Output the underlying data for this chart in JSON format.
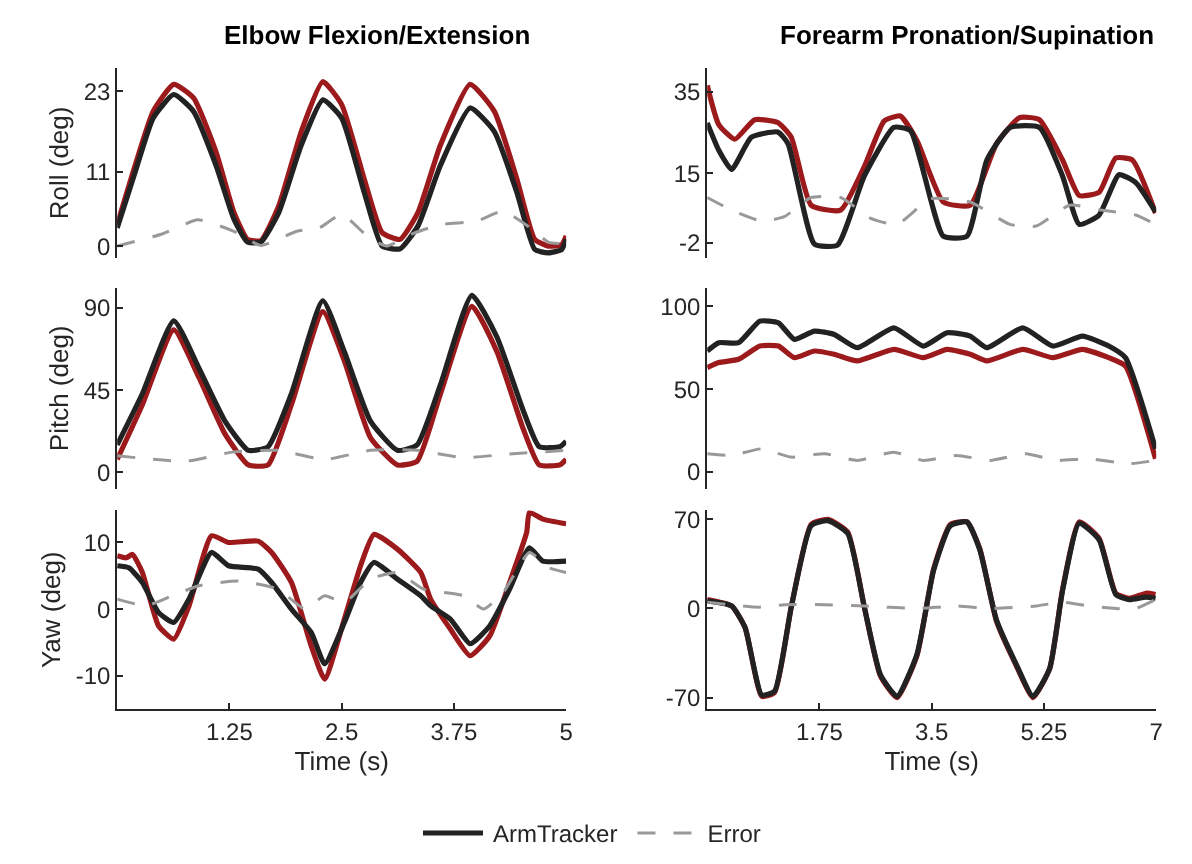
{
  "chart_data": [
    {
      "type": "line",
      "title": "Elbow Flexion/Extension",
      "ylabel": "Roll (deg)",
      "xlim": [
        0,
        5
      ],
      "ylim": [
        -1.8,
        26.5
      ],
      "yticks": [
        0,
        11,
        23
      ],
      "tick_labels": "y",
      "legend": "bottom",
      "series": [
        {
          "color": "#9c1a1c",
          "x": [
            0,
            0.2,
            0.4,
            0.63,
            0.85,
            1.1,
            1.3,
            1.45,
            1.6,
            1.8,
            2.05,
            2.29,
            2.5,
            2.75,
            2.95,
            3.15,
            3.35,
            3.6,
            3.93,
            4.2,
            4.45,
            4.65,
            4.8,
            4.95,
            5
          ],
          "values": [
            3.2,
            12,
            20,
            24,
            22,
            14,
            5,
            1,
            0.8,
            6,
            17,
            24.4,
            21,
            10,
            2,
            1,
            5,
            15,
            24,
            20,
            10,
            1,
            0,
            0.2,
            1.5
          ]
        },
        {
          "name": "ArmTracker",
          "color": "#222222",
          "x": [
            0,
            0.2,
            0.4,
            0.63,
            0.85,
            1.1,
            1.3,
            1.45,
            1.6,
            1.8,
            2.05,
            2.29,
            2.5,
            2.75,
            2.95,
            3.15,
            3.35,
            3.6,
            3.93,
            4.2,
            4.45,
            4.65,
            4.8,
            4.95,
            5
          ],
          "values": [
            2.7,
            11,
            19,
            22.5,
            20,
            12,
            4,
            0.6,
            0.6,
            5,
            15,
            21.7,
            19,
            8,
            0,
            -0.4,
            3,
            12,
            20.5,
            17,
            8,
            -0.5,
            -1,
            -0.5,
            1
          ]
        },
        {
          "name": "Error",
          "color": "#999999",
          "line_style": "dashed",
          "x": [
            0,
            0.5,
            0.9,
            1.3,
            1.6,
            2.0,
            2.25,
            2.5,
            2.8,
            3.0,
            3.3,
            3.6,
            4.0,
            4.3,
            4.6,
            4.8,
            5
          ],
          "values": [
            0,
            1.8,
            3.9,
            2.2,
            0.1,
            2.2,
            2.7,
            4.7,
            1.3,
            0,
            1.9,
            3.2,
            3.7,
            5.2,
            2.7,
            0.6,
            0.3
          ]
        }
      ]
    },
    {
      "type": "line",
      "title": "Forearm Pronation/Supination",
      "xlim": [
        0,
        7
      ],
      "ylim": [
        -5.8,
        41
      ],
      "yticks": [
        -2,
        15,
        35
      ],
      "tick_labels": "y",
      "series": [
        {
          "color": "#9c1a1c",
          "x": [
            0,
            0.18,
            0.43,
            0.74,
            1.1,
            1.31,
            1.62,
            2.08,
            2.45,
            2.76,
            3.01,
            3.27,
            3.68,
            4.1,
            4.51,
            4.87,
            5.18,
            5.54,
            5.8,
            6.11,
            6.37,
            6.63,
            6.99
          ],
          "values": [
            36.6,
            27,
            23.4,
            28.2,
            27.5,
            23.9,
            7.2,
            6,
            16.7,
            27.9,
            29.1,
            23.1,
            8,
            7.2,
            22.3,
            28.7,
            28.2,
            18.3,
            9.6,
            10.4,
            18.8,
            18.3,
            5.3
          ]
        },
        {
          "color": "#222222",
          "x": [
            0,
            0.18,
            0.38,
            0.69,
            1.1,
            1.26,
            1.67,
            2.03,
            2.45,
            2.91,
            3.17,
            3.68,
            4.05,
            4.36,
            4.72,
            5.18,
            5.54,
            5.8,
            6.11,
            6.42,
            6.68,
            6.99
          ],
          "values": [
            27.4,
            20.7,
            16,
            23.9,
            25.2,
            22.3,
            -2.3,
            -2.6,
            14.4,
            26.3,
            25.5,
            -0.4,
            -0.4,
            18.3,
            26.3,
            26.3,
            14.4,
            2.5,
            4.8,
            14.7,
            12.8,
            5.6
          ]
        },
        {
          "color": "#999999",
          "line_style": "dashed",
          "x": [
            0,
            0.38,
            0.85,
            1.2,
            1.62,
            2.08,
            2.55,
            2.96,
            3.48,
            4.1,
            4.72,
            5.13,
            5.65,
            6.16,
            6.68,
            6.99
          ],
          "values": [
            9.1,
            6,
            3.3,
            4.4,
            9.1,
            9.1,
            4,
            2.5,
            8.8,
            8,
            2.5,
            2.1,
            7.2,
            6,
            4.8,
            2.5
          ]
        }
      ]
    },
    {
      "type": "line",
      "ylabel": "Pitch (deg)",
      "xlim": [
        0,
        5
      ],
      "ylim": [
        -9,
        101
      ],
      "yticks": [
        0,
        45,
        90
      ],
      "tick_labels": "y",
      "series": [
        {
          "color": "#9c1a1c",
          "x": [
            0,
            0.28,
            0.63,
            0.91,
            1.2,
            1.46,
            1.68,
            1.94,
            2.29,
            2.53,
            2.82,
            3.12,
            3.34,
            3.6,
            3.95,
            4.23,
            4.52,
            4.7,
            4.93,
            5
          ],
          "values": [
            7,
            37,
            78,
            52,
            21,
            4,
            4,
            37,
            88,
            61,
            19,
            4,
            6,
            43,
            91,
            66,
            24,
            4,
            4,
            7
          ]
        },
        {
          "color": "#222222",
          "x": [
            0,
            0.28,
            0.63,
            0.91,
            1.2,
            1.46,
            1.68,
            1.94,
            2.29,
            2.53,
            2.82,
            3.12,
            3.34,
            3.6,
            3.95,
            4.23,
            4.52,
            4.7,
            4.93,
            5
          ],
          "values": [
            15,
            43,
            83,
            57,
            28,
            12,
            14,
            43,
            94,
            66,
            28,
            12,
            15,
            48,
            97,
            74,
            34,
            14,
            14,
            17
          ]
        },
        {
          "color": "#999999",
          "line_style": "dashed",
          "x": [
            0,
            0.76,
            1.28,
            1.79,
            2.31,
            2.82,
            3.34,
            3.86,
            4.37,
            5
          ],
          "values": [
            9,
            6,
            11,
            12,
            7,
            12,
            12,
            8,
            10,
            12
          ]
        }
      ]
    },
    {
      "type": "line",
      "xlim": [
        0,
        7
      ],
      "ylim": [
        -10,
        111
      ],
      "yticks": [
        0,
        50,
        100
      ],
      "tick_labels": "y",
      "series": [
        {
          "color": "#9c1a1c",
          "x": [
            0,
            0.18,
            0.49,
            0.82,
            1.11,
            1.36,
            1.67,
            1.98,
            2.34,
            2.91,
            3.37,
            3.74,
            4.1,
            4.36,
            4.92,
            5.39,
            5.85,
            6.26,
            6.52,
            6.99
          ],
          "values": [
            63,
            66,
            68,
            76,
            76,
            69,
            73,
            71,
            67,
            74,
            69,
            74,
            71,
            67,
            74,
            69,
            74,
            69,
            64,
            8
          ]
        },
        {
          "color": "#222222",
          "x": [
            0,
            0.18,
            0.49,
            0.82,
            1.11,
            1.36,
            1.67,
            1.98,
            2.34,
            2.91,
            3.37,
            3.74,
            4.1,
            4.36,
            4.92,
            5.39,
            5.85,
            6.26,
            6.52,
            6.99
          ],
          "values": [
            73,
            78,
            78,
            91,
            90,
            80,
            85,
            83,
            75,
            87,
            76,
            84,
            82,
            75,
            87,
            76,
            82,
            76,
            69,
            14
          ]
        },
        {
          "color": "#999999",
          "line_style": "dashed",
          "x": [
            0,
            0.38,
            0.85,
            1.31,
            1.83,
            2.34,
            2.91,
            3.37,
            3.89,
            4.41,
            4.97,
            5.44,
            5.95,
            6.57,
            6.99
          ],
          "values": [
            11,
            10,
            14,
            9,
            11,
            7,
            12,
            7,
            10,
            7,
            11,
            7,
            8,
            5,
            7
          ]
        }
      ]
    },
    {
      "type": "line",
      "ylabel": "Yaw (deg)",
      "xlabel": "Time (s)",
      "xlim": [
        0,
        5
      ],
      "ylim": [
        -15,
        14.8
      ],
      "xticks": [
        1.25,
        2.5,
        3.75,
        5
      ],
      "yticks": [
        -10,
        0,
        10
      ],
      "series": [
        {
          "color": "#9c1a1c",
          "x": [
            0,
            0.1,
            0.17,
            0.28,
            0.46,
            0.63,
            0.8,
            1.05,
            1.24,
            1.57,
            1.72,
            1.94,
            2.16,
            2.31,
            2.53,
            2.71,
            2.86,
            3.12,
            3.38,
            3.49,
            3.71,
            3.93,
            4.15,
            4.37,
            4.56,
            4.59,
            4.74,
            5
          ],
          "values": [
            8,
            7.7,
            8.2,
            5.5,
            -2.5,
            -4.5,
            0.5,
            11,
            10,
            10.2,
            8.5,
            4,
            -5.5,
            -10.5,
            -1.5,
            6.5,
            11.2,
            9,
            5.5,
            1.5,
            -3,
            -7,
            -4,
            4,
            11.5,
            14.5,
            13.5,
            12.8
          ]
        },
        {
          "color": "#222222",
          "x": [
            0,
            0.13,
            0.28,
            0.46,
            0.63,
            0.8,
            1.05,
            1.24,
            1.57,
            1.72,
            1.94,
            2.16,
            2.31,
            2.53,
            2.71,
            2.86,
            3.12,
            3.38,
            3.49,
            3.71,
            3.93,
            4.15,
            4.37,
            4.59,
            4.74,
            5
          ],
          "values": [
            6.5,
            6.2,
            4,
            -0.5,
            -2,
            1.5,
            8.5,
            6.5,
            6,
            4,
            0,
            -3.5,
            -8.2,
            -2,
            4,
            7,
            4.5,
            2,
            0.5,
            -1.5,
            -5.2,
            -2.5,
            3,
            9.2,
            7.2,
            7.2
          ]
        },
        {
          "color": "#999999",
          "line_style": "dashed",
          "x": [
            0,
            0.32,
            0.61,
            0.91,
            1.35,
            1.79,
            2.09,
            2.31,
            2.53,
            2.82,
            3.12,
            3.41,
            3.86,
            4.08,
            4.3,
            4.59,
            4.81,
            5
          ],
          "values": [
            1.5,
            0.5,
            2,
            3.5,
            4.2,
            3,
            0,
            2,
            1,
            4.5,
            5.5,
            3,
            2,
            0,
            2.5,
            8.5,
            6.2,
            5.5
          ]
        }
      ]
    },
    {
      "type": "line",
      "xlabel": "Time (s)",
      "xlim": [
        0,
        7
      ],
      "ylim": [
        -79,
        77
      ],
      "xticks": [
        1.75,
        3.5,
        5.25,
        7
      ],
      "yticks": [
        -70,
        0,
        70
      ],
      "series": [
        {
          "color": "#9c1a1c",
          "x": [
            0,
            0.38,
            0.59,
            0.85,
            1.05,
            1.31,
            1.62,
            1.88,
            2.19,
            2.45,
            2.7,
            2.96,
            3.27,
            3.53,
            3.79,
            4.05,
            4.25,
            4.51,
            4.82,
            5.08,
            5.34,
            5.54,
            5.8,
            6.11,
            6.37,
            6.58,
            6.84,
            6.99
          ],
          "values": [
            7,
            2,
            -15,
            -69,
            -66,
            1,
            66,
            70,
            60,
            1,
            -53,
            -70,
            -37,
            31,
            66,
            68,
            47,
            -10,
            -45,
            -70,
            -47,
            15,
            68,
            55,
            12,
            8,
            12,
            11
          ]
        },
        {
          "color": "#222222",
          "x": [
            0,
            0.38,
            0.59,
            0.85,
            1.05,
            1.31,
            1.62,
            1.88,
            2.19,
            2.45,
            2.7,
            2.96,
            3.27,
            3.53,
            3.79,
            4.05,
            4.25,
            4.51,
            4.82,
            5.08,
            5.34,
            5.54,
            5.8,
            6.11,
            6.37,
            6.58,
            6.84,
            6.99
          ],
          "values": [
            6,
            2,
            -15,
            -68,
            -65,
            1,
            65,
            69,
            59,
            1,
            -52,
            -69,
            -36,
            30,
            65,
            68,
            46,
            -9,
            -44,
            -69,
            -47,
            14,
            67,
            54,
            11,
            7,
            9,
            8
          ]
        },
        {
          "color": "#999999",
          "line_style": "dashed",
          "x": [
            0,
            0.8,
            1.21,
            1.83,
            2.45,
            3.27,
            3.89,
            4.41,
            5.13,
            5.54,
            5.95,
            6.37,
            6.68,
            6.99
          ],
          "values": [
            5,
            1,
            3,
            3,
            2,
            0,
            2,
            0,
            2,
            5,
            2,
            0,
            0,
            7
          ]
        }
      ]
    }
  ]
}
